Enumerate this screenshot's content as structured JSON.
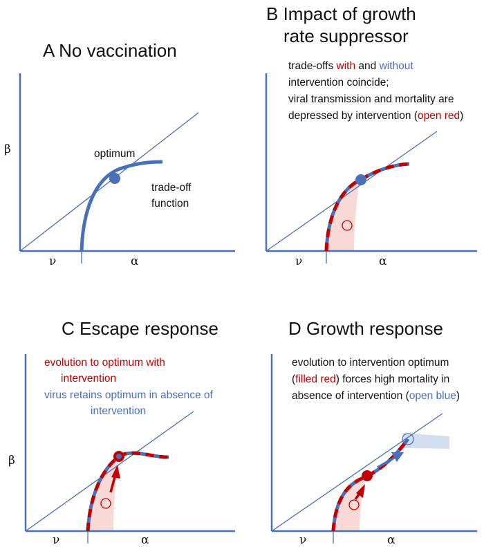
{
  "panels": {
    "A": {
      "title": "A  No vaccination",
      "beta": "β",
      "nu": "ν",
      "alpha": "α",
      "optimum_label": "optimum",
      "tradeoff_label_1": "trade-off",
      "tradeoff_label_2": "function"
    },
    "B": {
      "title_1": "B  Impact of growth",
      "title_2": "rate suppressor",
      "note": {
        "l1_a": "trade-offs ",
        "l1_red": "with",
        "l1_b": " and ",
        "l1_blue": "without",
        "l2": "intervention coincide;",
        "l3": "viral transmission and mortality are",
        "l4_a": "depressed by intervention (",
        "l4_red": "open red",
        "l4_b": ")"
      },
      "nu": "ν",
      "alpha": "α"
    },
    "C": {
      "title": "C  Escape response",
      "note": {
        "l1": "evolution to optimum with",
        "l2": "intervention",
        "l3": "virus retains optimum in absence of",
        "l4": "intervention"
      },
      "beta": "β",
      "nu": "ν",
      "alpha": "α"
    },
    "D": {
      "title": "D  Growth response",
      "note": {
        "l1": "evolution to intervention optimum",
        "l2_a": "(",
        "l2_red": "filled red",
        "l2_b": ") forces high mortality in",
        "l3_a": "absence of intervention (",
        "l3_blue": "open blue",
        "l3_b": ")"
      },
      "nu": "ν",
      "alpha": "α"
    }
  },
  "colors": {
    "blue": "#4a70b8",
    "red": "#c00000",
    "pink": "#f9d9d6",
    "lightblue": "#d3def0"
  }
}
